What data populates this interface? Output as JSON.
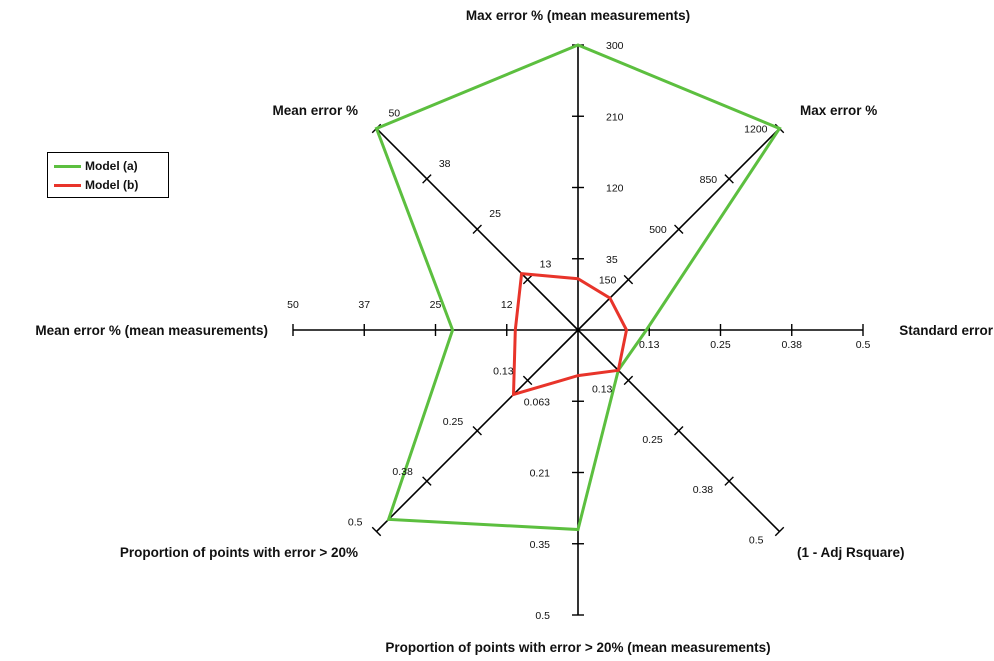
{
  "chart_data": {
    "type": "radar",
    "axes": [
      {
        "label": "Standard error",
        "ticks": [
          "0.13",
          "0.25",
          "0.38",
          "0.5"
        ],
        "max": 0.5
      },
      {
        "label": "Max error %",
        "ticks": [
          "150",
          "500",
          "850",
          "1200"
        ],
        "max": 1200
      },
      {
        "label": "Max error % (mean measurements)",
        "ticks": [
          "35",
          "120",
          "210",
          "300"
        ],
        "max": 300
      },
      {
        "label": "Mean error %",
        "ticks": [
          "13",
          "25",
          "38",
          "50"
        ],
        "max": 50
      },
      {
        "label": "Mean error % (mean measurements)",
        "ticks": [
          "12",
          "25",
          "37",
          "50"
        ],
        "max": 50
      },
      {
        "label": "Proportion of points with error > 20%",
        "ticks": [
          "0.13",
          "0.25",
          "0.38",
          "0.5"
        ],
        "max": 0.5
      },
      {
        "label": "Proportion of points with error > 20% (mean measurements)",
        "ticks": [
          "0.063",
          "0.21",
          "0.35",
          "0.5"
        ],
        "max": 0.5
      },
      {
        "label": "(1 - Adj Rsquare)",
        "ticks": [
          "0.13",
          "0.25",
          "0.38",
          "0.5"
        ],
        "max": 0.5
      }
    ],
    "series": [
      {
        "name": "Model (a)",
        "color": "#5cbf3f",
        "values": [
          0.12,
          1200,
          300,
          50,
          22,
          0.47,
          0.35,
          0.1
        ]
      },
      {
        "name": "Model (b)",
        "color": "#e8342a",
        "values": [
          0.085,
          190,
          54,
          14,
          11,
          0.16,
          0.08,
          0.1
        ]
      }
    ],
    "legend_position": "left"
  },
  "legend": {
    "items": [
      {
        "label": "Model (a)",
        "color": "#5cbf3f"
      },
      {
        "label": "Model (b)",
        "color": "#e8342a"
      }
    ]
  }
}
